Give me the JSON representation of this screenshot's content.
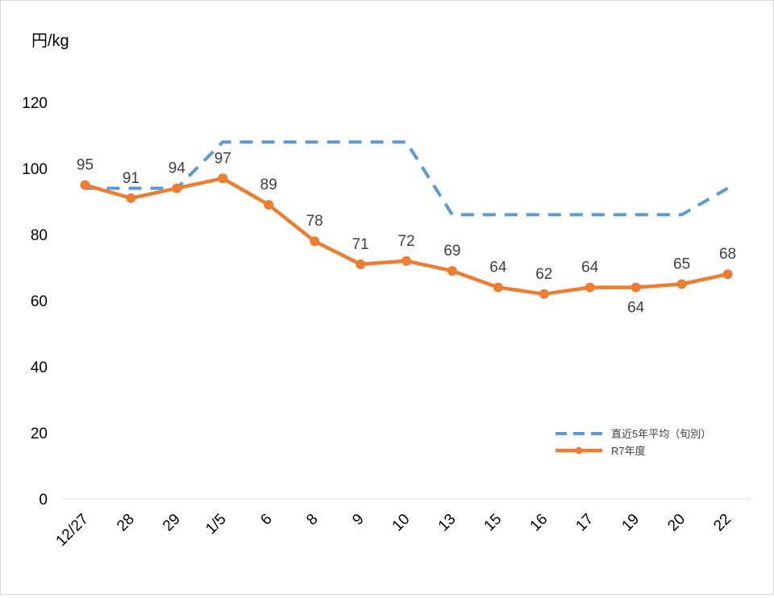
{
  "chart_data": {
    "type": "line",
    "y_unit_label": "円/kg",
    "categories": [
      "12/27",
      "28",
      "29",
      "1/5",
      "6",
      "8",
      "9",
      "10",
      "13",
      "15",
      "16",
      "17",
      "19",
      "20",
      "22"
    ],
    "ylim": [
      0,
      120
    ],
    "yticks": [
      0,
      20,
      40,
      60,
      80,
      100,
      120
    ],
    "grid": false,
    "legend_position": "bottom-right",
    "series": [
      {
        "name": "直近5年平均（旬別）",
        "style": "dashed",
        "color": "#5B9BD5",
        "values": [
          94,
          94,
          94,
          108,
          108,
          108,
          108,
          108,
          86,
          86,
          86,
          86,
          86,
          86,
          94
        ]
      },
      {
        "name": "R7年度",
        "style": "solid-markers",
        "color": "#ED7D31",
        "values": [
          95,
          91,
          94,
          97,
          89,
          78,
          71,
          72,
          69,
          64,
          62,
          64,
          64,
          65,
          68
        ],
        "data_labels": [
          "95",
          "91",
          "94",
          "97",
          "89",
          "78",
          "71",
          "72",
          "69",
          "64",
          "62",
          "64",
          "64",
          "65",
          "68"
        ]
      }
    ]
  }
}
